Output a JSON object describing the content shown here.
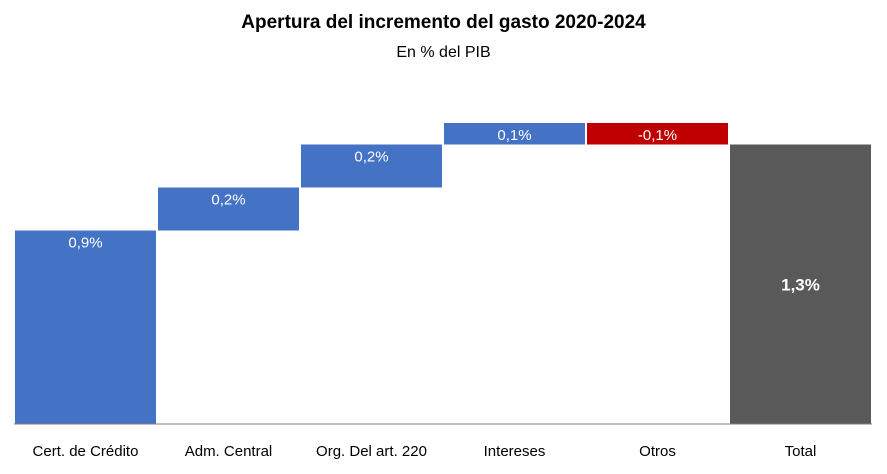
{
  "chart_data": {
    "type": "bar",
    "subtype": "waterfall",
    "title": "Apertura del incremento del gasto 2020-2024",
    "subtitle": "En % del PIB",
    "xlabel": "",
    "ylabel": "",
    "categories": [
      "Cert. de Crédito",
      "Adm. Central",
      "Org. Del art. 220",
      "Intereses",
      "Otros",
      "Total"
    ],
    "values": [
      0.9,
      0.2,
      0.2,
      0.1,
      -0.1,
      1.3
    ],
    "kinds": [
      "delta",
      "delta",
      "delta",
      "delta",
      "delta",
      "total"
    ],
    "data_labels": [
      "0,9%",
      "0,2%",
      "0,2%",
      "0,1%",
      "-0,1%",
      "1,3%"
    ],
    "ylim": [
      0,
      1.4
    ],
    "grid": false,
    "legend": "none",
    "colors": {
      "increase": "#4472C4",
      "decrease": "#C00000",
      "total": "#595959",
      "axis": "#7f7f7f",
      "label_text": "#ffffff"
    }
  }
}
